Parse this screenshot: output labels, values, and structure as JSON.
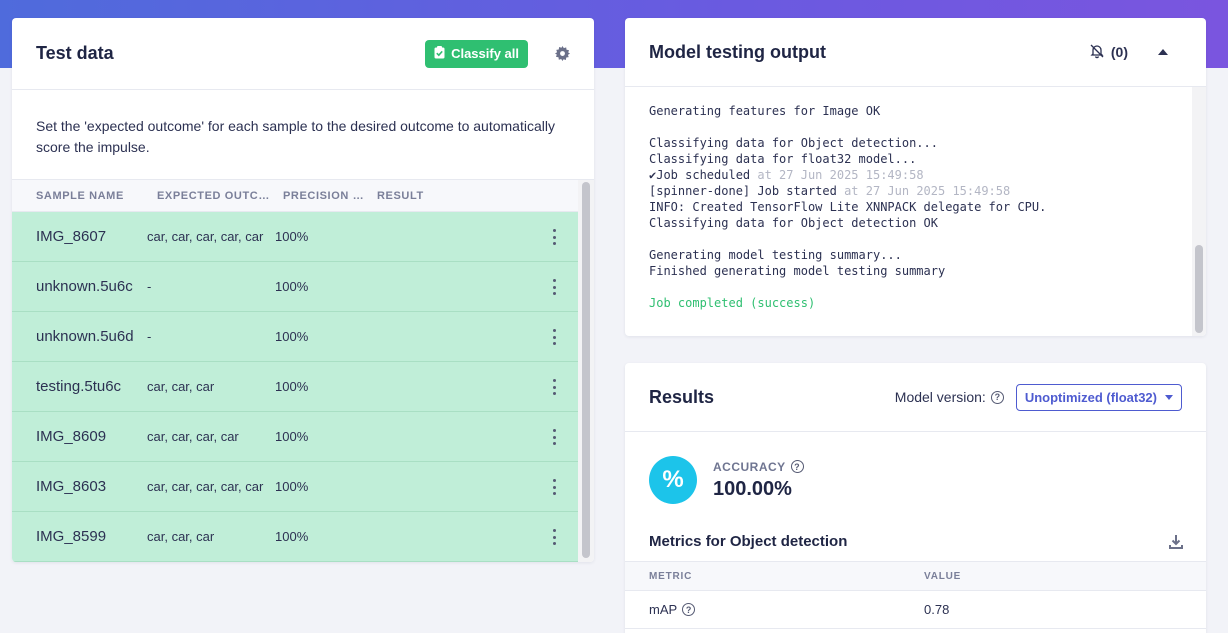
{
  "test_data": {
    "title": "Test data",
    "classify_all_label": "Classify all",
    "description": "Set the 'expected outcome' for each sample to the desired outcome to automatically score the impulse.",
    "columns": [
      "SAMPLE NAME",
      "EXPECTED OUTCOME",
      "PRECISION SCORE",
      "RESULT"
    ],
    "rows": [
      {
        "name": "IMG_8607",
        "expected": "car, car, car, car, car",
        "precision": "100%",
        "result": ""
      },
      {
        "name": "unknown.5u6c",
        "expected": "-",
        "precision": "100%",
        "result": ""
      },
      {
        "name": "unknown.5u6d",
        "expected": "-",
        "precision": "100%",
        "result": ""
      },
      {
        "name": "testing.5tu6c",
        "expected": "car, car, car",
        "precision": "100%",
        "result": ""
      },
      {
        "name": "IMG_8609",
        "expected": "car, car, car, car",
        "precision": "100%",
        "result": ""
      },
      {
        "name": "IMG_8603",
        "expected": "car, car, car, car, car",
        "precision": "100%",
        "result": ""
      },
      {
        "name": "IMG_8599",
        "expected": "car, car, car",
        "precision": "100%",
        "result": ""
      }
    ],
    "row_color": "#c0eed8"
  },
  "output": {
    "title": "Model testing output",
    "notification_count": "(0)",
    "log": {
      "l1": "Generating features for Image OK",
      "l2": "Classifying data for Object detection...",
      "l3": "Classifying data for float32 model...",
      "l4a": "✔Job scheduled",
      "l4b": " at 27 Jun 2025 15:49:58",
      "l5a": "[spinner-done] Job started",
      "l5b": " at 27 Jun 2025 15:49:58",
      "l6": "INFO: Created TensorFlow Lite XNNPACK delegate for CPU.",
      "l7": "Classifying data for Object detection OK",
      "l8": "Generating model testing summary...",
      "l9": "Finished generating model testing summary",
      "l10": "Job completed (success)"
    }
  },
  "results": {
    "title": "Results",
    "model_version_label": "Model version:",
    "model_version_value": "Unoptimized (float32)",
    "accuracy_label": "ACCURACY",
    "accuracy_value": "100.00%",
    "accuracy_symbol": "%",
    "metrics_title": "Metrics for Object detection",
    "metrics_columns": [
      "METRIC",
      "VALUE"
    ],
    "metrics_rows": [
      {
        "metric": "mAP",
        "value": "0.78"
      }
    ]
  },
  "colors": {
    "accent_green": "#2fbf71",
    "accent_blue": "#4e5bd0",
    "accuracy_cyan": "#1cc4ea",
    "header_gradient_start": "#4f6bdc",
    "header_gradient_end": "#7a55df"
  }
}
